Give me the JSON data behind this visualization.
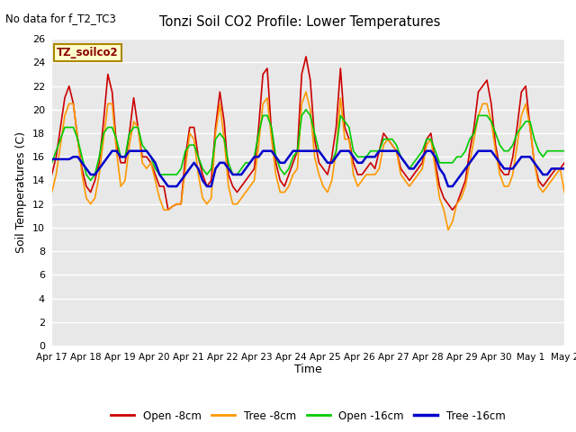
{
  "title": "Tonzi Soil CO2 Profile: Lower Temperatures",
  "subtitle": "No data for f_T2_TC3",
  "ylabel": "Soil Temperatures (C)",
  "xlabel": "Time",
  "dataset_label": "TZ_soilco2",
  "ylim": [
    0,
    26
  ],
  "yticks": [
    0,
    2,
    4,
    6,
    8,
    10,
    12,
    14,
    16,
    18,
    20,
    22,
    24,
    26
  ],
  "xtick_labels": [
    "Apr 17",
    "Apr 18",
    "Apr 19",
    "Apr 20",
    "Apr 21",
    "Apr 22",
    "Apr 23",
    "Apr 24",
    "Apr 25",
    "Apr 26",
    "Apr 27",
    "Apr 28",
    "Apr 29",
    "Apr 30",
    "May 1",
    "May 2"
  ],
  "colors": {
    "open_8cm": "#cc0000",
    "tree_8cm": "#ff9900",
    "open_16cm": "#00cc00",
    "tree_16cm": "#0000cc"
  },
  "legend_labels": [
    "Open -8cm",
    "Tree -8cm",
    "Open -16cm",
    "Tree -16cm"
  ],
  "bg_color": "#e8e8e8",
  "grid_color": "#ffffff",
  "open_8cm": [
    14.5,
    16.0,
    18.5,
    21.0,
    22.0,
    20.5,
    17.5,
    15.0,
    13.5,
    13.0,
    14.0,
    15.5,
    19.0,
    23.0,
    21.5,
    17.0,
    15.5,
    15.5,
    18.0,
    21.0,
    18.5,
    16.0,
    16.0,
    15.5,
    14.5,
    13.5,
    13.5,
    11.5,
    11.8,
    12.0,
    12.0,
    16.0,
    18.5,
    18.5,
    16.0,
    14.5,
    13.5,
    14.0,
    18.5,
    21.5,
    19.0,
    14.5,
    13.5,
    13.0,
    13.5,
    14.0,
    14.5,
    15.0,
    18.5,
    23.0,
    23.5,
    18.0,
    15.5,
    14.0,
    13.5,
    14.5,
    15.5,
    16.5,
    23.0,
    24.5,
    22.5,
    17.5,
    15.5,
    15.0,
    14.5,
    16.0,
    18.5,
    23.5,
    18.5,
    17.5,
    15.5,
    14.5,
    14.5,
    15.0,
    15.5,
    15.0,
    16.5,
    18.0,
    17.5,
    17.0,
    16.5,
    15.0,
    14.5,
    14.0,
    14.5,
    15.0,
    15.5,
    17.5,
    18.0,
    15.5,
    13.5,
    12.5,
    12.0,
    11.5,
    12.0,
    13.0,
    14.0,
    16.5,
    18.5,
    21.5,
    22.0,
    22.5,
    20.5,
    17.0,
    15.0,
    14.5,
    14.5,
    16.0,
    18.5,
    21.5,
    22.0,
    18.5,
    15.5,
    14.0,
    13.5,
    14.0,
    14.5,
    15.0,
    15.0,
    15.5
  ],
  "tree_8cm": [
    13.0,
    14.5,
    17.0,
    19.5,
    20.5,
    20.5,
    17.5,
    14.5,
    12.5,
    12.0,
    12.5,
    14.5,
    17.5,
    20.5,
    20.5,
    16.5,
    13.5,
    14.0,
    17.0,
    19.0,
    18.5,
    15.5,
    15.0,
    15.5,
    14.0,
    12.5,
    11.5,
    11.5,
    11.8,
    12.0,
    12.0,
    15.0,
    18.0,
    17.5,
    14.5,
    12.5,
    12.0,
    12.5,
    18.0,
    20.5,
    17.5,
    13.5,
    12.0,
    12.0,
    12.5,
    13.0,
    13.5,
    14.0,
    17.0,
    20.5,
    21.0,
    17.5,
    14.5,
    13.0,
    13.0,
    13.5,
    14.5,
    15.0,
    20.5,
    21.5,
    20.0,
    16.0,
    14.5,
    13.5,
    13.0,
    14.0,
    16.5,
    21.0,
    17.5,
    17.5,
    14.5,
    13.5,
    14.0,
    14.5,
    14.5,
    14.5,
    15.0,
    17.0,
    17.5,
    17.0,
    16.5,
    14.5,
    14.0,
    13.5,
    14.0,
    14.5,
    15.0,
    17.0,
    17.5,
    15.0,
    12.5,
    11.5,
    9.8,
    10.5,
    12.0,
    12.5,
    13.5,
    15.5,
    17.5,
    19.5,
    20.5,
    20.5,
    19.0,
    16.5,
    14.5,
    13.5,
    13.5,
    14.5,
    17.0,
    19.5,
    20.5,
    18.5,
    15.5,
    13.5,
    13.0,
    13.5,
    14.0,
    14.5,
    15.0,
    13.0
  ],
  "open_16cm": [
    15.5,
    16.5,
    17.5,
    18.5,
    18.5,
    18.5,
    17.5,
    16.0,
    14.5,
    14.0,
    14.5,
    16.0,
    18.0,
    18.5,
    18.5,
    17.5,
    16.0,
    16.0,
    18.0,
    18.5,
    18.5,
    17.0,
    16.5,
    16.0,
    15.0,
    14.5,
    14.5,
    14.5,
    14.5,
    14.5,
    15.0,
    16.5,
    17.0,
    17.0,
    16.0,
    15.0,
    14.5,
    15.0,
    17.5,
    18.0,
    17.5,
    15.5,
    14.5,
    14.5,
    15.0,
    15.5,
    15.5,
    16.0,
    18.0,
    19.5,
    19.5,
    18.5,
    16.0,
    15.0,
    14.5,
    15.0,
    16.0,
    16.5,
    19.5,
    20.0,
    19.5,
    18.0,
    16.5,
    16.0,
    15.5,
    15.5,
    16.5,
    19.5,
    19.0,
    18.5,
    16.5,
    16.0,
    16.0,
    16.0,
    16.5,
    16.5,
    16.5,
    17.5,
    17.5,
    17.5,
    17.0,
    16.0,
    15.5,
    15.0,
    15.5,
    16.0,
    16.5,
    17.5,
    17.5,
    16.5,
    15.5,
    15.5,
    15.5,
    15.5,
    16.0,
    16.0,
    16.5,
    17.5,
    18.0,
    19.5,
    19.5,
    19.5,
    19.0,
    18.0,
    17.0,
    16.5,
    16.5,
    17.0,
    18.0,
    18.5,
    19.0,
    19.0,
    17.5,
    16.5,
    16.0,
    16.5,
    16.5,
    16.5,
    16.5,
    16.5
  ],
  "tree_16cm": [
    15.8,
    15.8,
    15.8,
    15.8,
    15.8,
    16.0,
    16.0,
    15.5,
    15.0,
    14.5,
    14.5,
    15.0,
    15.5,
    16.0,
    16.5,
    16.5,
    16.0,
    16.0,
    16.5,
    16.5,
    16.5,
    16.5,
    16.5,
    16.0,
    15.5,
    14.5,
    14.0,
    13.5,
    13.5,
    13.5,
    14.0,
    14.5,
    15.0,
    15.5,
    15.0,
    14.0,
    13.5,
    13.5,
    15.0,
    15.5,
    15.5,
    15.0,
    14.5,
    14.5,
    14.5,
    15.0,
    15.5,
    16.0,
    16.0,
    16.5,
    16.5,
    16.5,
    16.0,
    15.5,
    15.5,
    16.0,
    16.5,
    16.5,
    16.5,
    16.5,
    16.5,
    16.5,
    16.5,
    16.0,
    15.5,
    15.5,
    16.0,
    16.5,
    16.5,
    16.5,
    16.0,
    15.5,
    15.5,
    16.0,
    16.0,
    16.0,
    16.5,
    16.5,
    16.5,
    16.5,
    16.5,
    16.0,
    15.5,
    15.0,
    15.0,
    15.5,
    16.0,
    16.5,
    16.5,
    16.0,
    15.0,
    14.5,
    13.5,
    13.5,
    14.0,
    14.5,
    15.0,
    15.5,
    16.0,
    16.5,
    16.5,
    16.5,
    16.5,
    16.0,
    15.5,
    15.0,
    15.0,
    15.0,
    15.5,
    16.0,
    16.0,
    16.0,
    15.5,
    15.0,
    14.5,
    14.5,
    15.0,
    15.0,
    15.0,
    15.0
  ]
}
